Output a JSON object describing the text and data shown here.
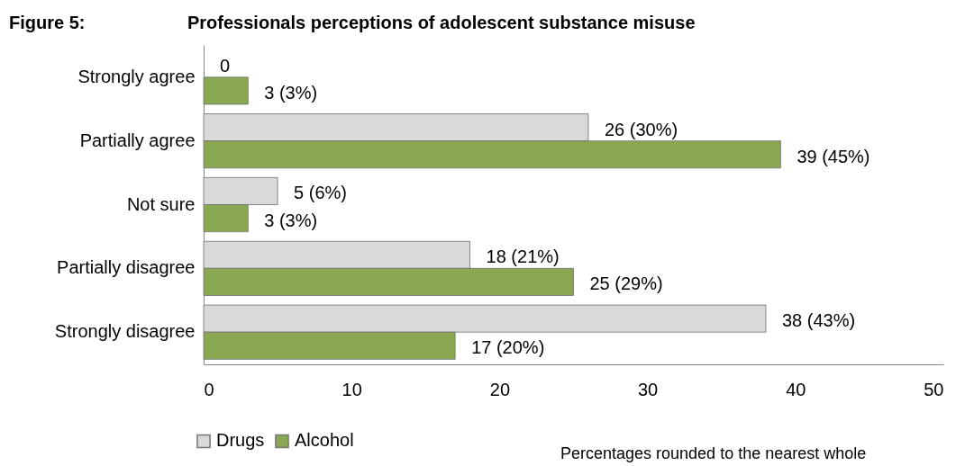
{
  "chart_data": {
    "type": "bar",
    "title": "Figure 5:",
    "subtitle": "Professionals perceptions of adolescent substance misuse",
    "orientation": "horizontal",
    "categories": [
      "Strongly agree",
      "Partially agree",
      "Not sure",
      "Partially disagree",
      "Strongly disagree"
    ],
    "series": [
      {
        "name": "Drugs",
        "color": "#d9d9d9",
        "values": [
          0,
          26,
          5,
          18,
          38
        ],
        "value_labels": [
          "0",
          "26 (30%)",
          "5 (6%)",
          "18 (21%)",
          "38 (43%)"
        ]
      },
      {
        "name": "Alcohol",
        "color": "#8aa852",
        "values": [
          3,
          39,
          3,
          25,
          17
        ],
        "value_labels": [
          "3 (3%)",
          "39 (45%)",
          "3 (3%)",
          "25 (29%)",
          "17 (20%)"
        ]
      }
    ],
    "xlim": [
      0,
      50
    ],
    "xticks": [
      0,
      10,
      20,
      30,
      40,
      50
    ],
    "grid": false,
    "legend": "bottom left",
    "annotations": [
      "Percentages  rounded to the nearest whole"
    ]
  }
}
